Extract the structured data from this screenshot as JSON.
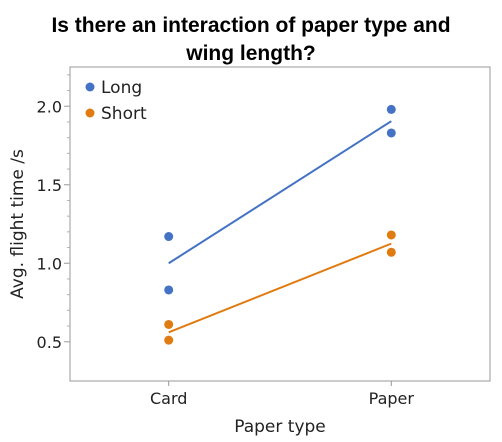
{
  "chart_data": {
    "type": "scatter",
    "title": "Is there an interaction of paper type and wing length?",
    "xlabel": "Paper type",
    "ylabel": "Avg. flight time /s",
    "categories": [
      "Card",
      "Paper"
    ],
    "ylim": [
      0.25,
      2.25
    ],
    "yticks": [
      "0.5",
      "1.0",
      "1.5",
      "2.0"
    ],
    "grid": false,
    "legend_position": "top-left",
    "series": [
      {
        "name": "Long",
        "color": "#4472c4",
        "points": [
          {
            "x": "Card",
            "y": 1.17
          },
          {
            "x": "Card",
            "y": 0.83
          },
          {
            "x": "Paper",
            "y": 1.98
          },
          {
            "x": "Paper",
            "y": 1.83
          }
        ],
        "line": [
          1.0,
          1.905
        ]
      },
      {
        "name": "Short",
        "color": "#e07b10",
        "points": [
          {
            "x": "Card",
            "y": 0.61
          },
          {
            "x": "Card",
            "y": 0.51
          },
          {
            "x": "Paper",
            "y": 1.18
          },
          {
            "x": "Paper",
            "y": 1.07
          }
        ],
        "line": [
          0.56,
          1.125
        ]
      }
    ]
  }
}
